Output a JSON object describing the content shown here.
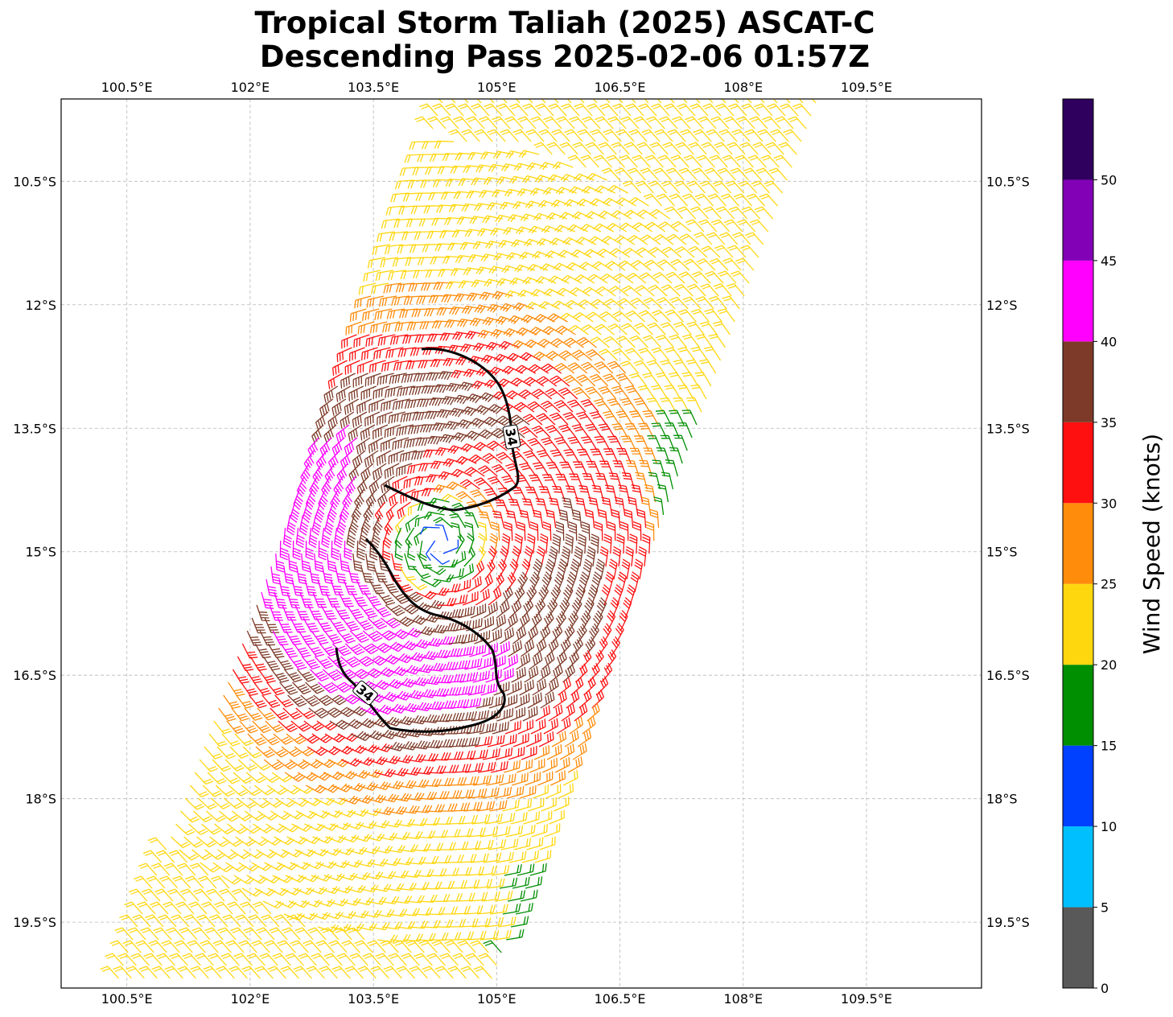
{
  "title": {
    "line1": "Tropical Storm Taliah (2025) ASCAT-C",
    "line2": "Descending Pass 2025-02-06 01:57Z"
  },
  "map": {
    "lon_ticks": [
      "100.5°E",
      "102°E",
      "103.5°E",
      "105°E",
      "106.5°E",
      "108°E",
      "109.5°E"
    ],
    "lon_values": [
      100.5,
      102,
      103.5,
      105,
      106.5,
      108,
      109.5
    ],
    "lat_ticks": [
      "10.5°S",
      "12°S",
      "13.5°S",
      "15°S",
      "16.5°S",
      "18°S",
      "19.5°S"
    ],
    "lat_values": [
      -10.5,
      -12,
      -13.5,
      -15,
      -16.5,
      -18,
      -19.5
    ],
    "lon_range": [
      99.7,
      110.9
    ],
    "lat_range": [
      -9.5,
      -20.3
    ],
    "grid": true,
    "contour_label": "34",
    "storm_center": {
      "lon": 104.3,
      "lat": -14.9
    }
  },
  "colorbar": {
    "label": "Wind Speed (knots)",
    "ticks": [
      "0",
      "5",
      "10",
      "15",
      "20",
      "25",
      "30",
      "35",
      "40",
      "45",
      "50"
    ],
    "bins": [
      0,
      5,
      10,
      15,
      20,
      25,
      30,
      35,
      40,
      45,
      50,
      55
    ],
    "colors": [
      "#595959",
      "#00bfff",
      "#0040ff",
      "#008f00",
      "#ffd70f",
      "#ff8c0a",
      "#ff1010",
      "#7d3a28",
      "#ff00ff",
      "#8200b6",
      "#2f005e"
    ]
  }
}
